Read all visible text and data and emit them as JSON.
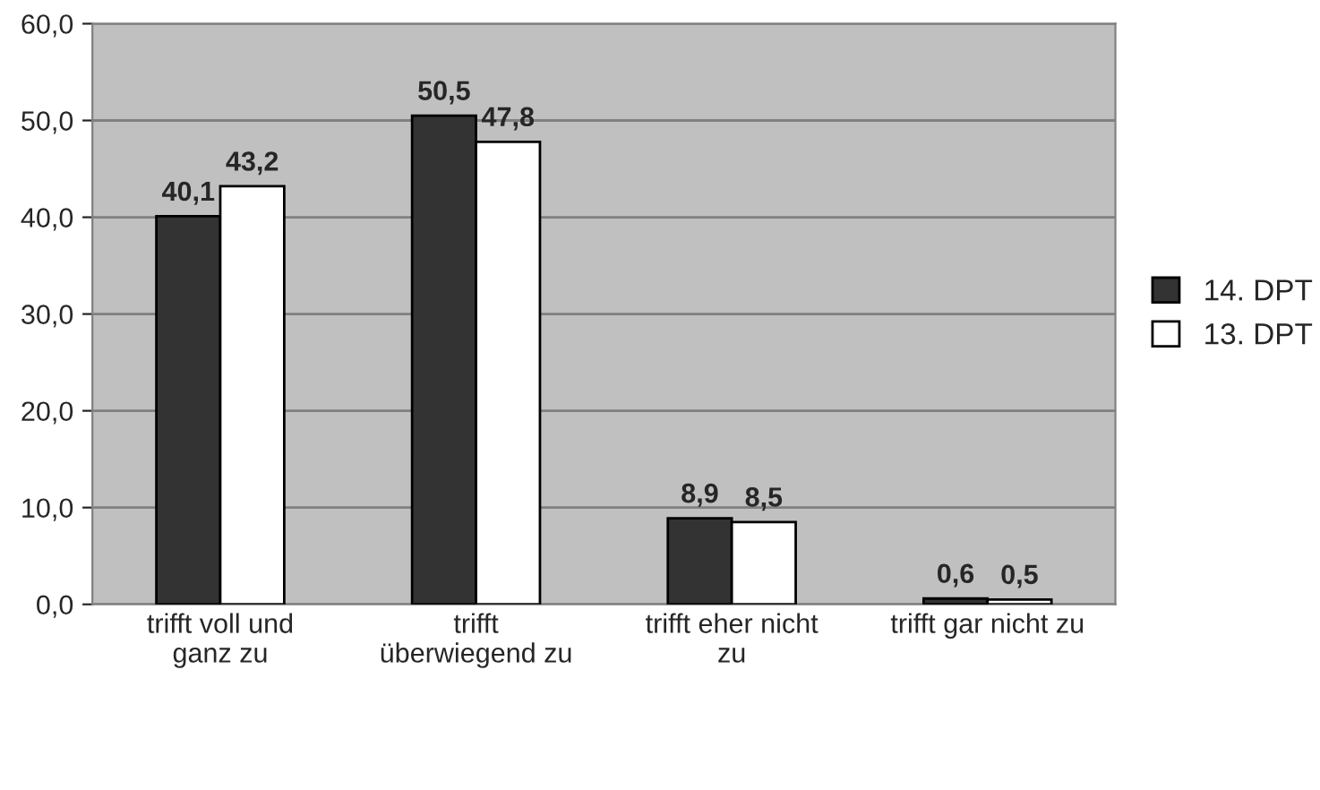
{
  "chart_data": {
    "type": "bar",
    "categories": [
      "trifft voll und\nganz zu",
      "trifft\nüberwiegend zu",
      "trifft eher nicht\nzu",
      "trifft gar nicht zu"
    ],
    "series": [
      {
        "name": "14. DPT",
        "color": "#333333",
        "values": [
          40.1,
          50.5,
          8.9,
          0.6
        ],
        "value_labels": [
          "40,1",
          "50,5",
          "8,9",
          "0,6"
        ]
      },
      {
        "name": "13. DPT",
        "color": "#ffffff",
        "values": [
          43.2,
          47.8,
          8.5,
          0.5
        ],
        "value_labels": [
          "43,2",
          "47,8",
          "8,5",
          "0,5"
        ]
      }
    ],
    "ylim": [
      0,
      60
    ],
    "yticks": [
      {
        "value": 0,
        "label": "0,0"
      },
      {
        "value": 10,
        "label": "10,0"
      },
      {
        "value": 20,
        "label": "20,0"
      },
      {
        "value": 30,
        "label": "30,0"
      },
      {
        "value": 40,
        "label": "40,0"
      },
      {
        "value": 50,
        "label": "50,0"
      },
      {
        "value": 60,
        "label": "60,0"
      }
    ],
    "grid": "y",
    "legend": "right"
  }
}
